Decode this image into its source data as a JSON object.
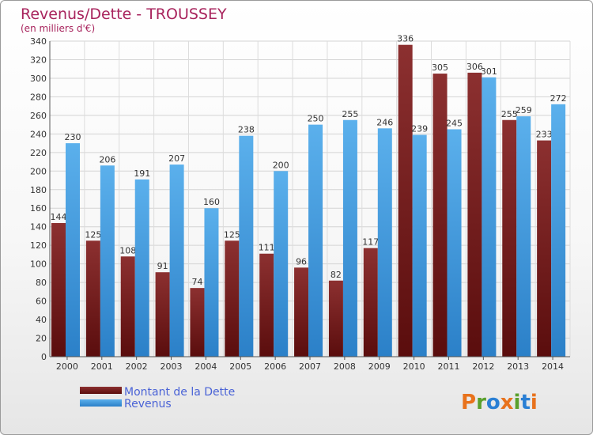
{
  "chart_data": {
    "type": "bar",
    "title": "Revenus/Dette - TROUSSEY",
    "subtitle": "(en milliers d'€)",
    "categories": [
      "2000",
      "2001",
      "2002",
      "2003",
      "2004",
      "2005",
      "2006",
      "2007",
      "2008",
      "2009",
      "2010",
      "2011",
      "2012",
      "2013",
      "2014"
    ],
    "series": [
      {
        "name": "Montant de la Dette",
        "color": "#7a1f1f",
        "values": [
          144,
          125,
          108,
          91,
          74,
          125,
          111,
          96,
          82,
          117,
          336,
          305,
          306,
          255,
          233
        ]
      },
      {
        "name": "Revenus",
        "color": "#3f98e0",
        "values": [
          230,
          206,
          191,
          207,
          160,
          238,
          200,
          250,
          255,
          246,
          239,
          245,
          301,
          259,
          272
        ]
      }
    ],
    "ylim": [
      0,
      340
    ],
    "ytick_step": 20,
    "grid": true,
    "legend_position": "bottom-left"
  },
  "branding": {
    "logo_text": "Proxiti",
    "logo_colors": [
      "#e8721c",
      "#5aa02c",
      "#2a7fd4",
      "#e8721c",
      "#5aa02c",
      "#2a7fd4",
      "#e8721c"
    ]
  }
}
